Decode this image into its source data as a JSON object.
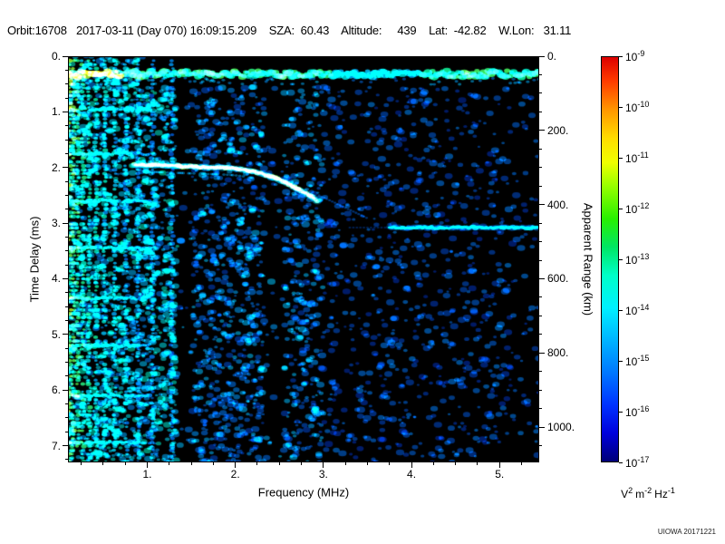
{
  "header": {
    "line": "Orbit:16708   2017-03-11 (Day 070) 16:09:15.209    SZA:  60.43    Altitude:     439    Lat:  -42.82    W.Lon:   31.11"
  },
  "watermark": "UIOWA 20171221",
  "chart_data": {
    "type": "heatmap",
    "title": "",
    "xlabel": "Frequency (MHz)",
    "ylabel": "Time Delay (ms)",
    "y2label": "Apparent Range (km)",
    "x_range": [
      0.1,
      5.45
    ],
    "y_range": [
      0,
      7.3
    ],
    "x_ticks": [
      1,
      2,
      3,
      4,
      5
    ],
    "x_tick_labels": [
      "1.",
      "2.",
      "3.",
      "4.",
      "5."
    ],
    "y_ticks": [
      0,
      1,
      2,
      3,
      4,
      5,
      6,
      7
    ],
    "y_tick_labels": [
      "0.",
      "1.",
      "2.",
      "3.",
      "4.",
      "5.",
      "6.",
      "7."
    ],
    "y2_ticks_km": [
      0,
      200,
      400,
      600,
      800,
      1000
    ],
    "y2_tick_labels": [
      "0.",
      "200.",
      "400.",
      "600.",
      "800.",
      "1000."
    ],
    "km_per_ms": 150,
    "grid": false,
    "seed": 42,
    "colorbar": {
      "tick_base": "10",
      "tick_exponents": [
        "-9",
        "-10",
        "-11",
        "-12",
        "-13",
        "-14",
        "-15",
        "-16",
        "-17"
      ],
      "unit_parts": [
        [
          "V",
          "2"
        ],
        [
          "m",
          "-2"
        ],
        [
          "Hz",
          "-1"
        ]
      ],
      "gradient": [
        [
          0,
          "#dc0000"
        ],
        [
          0.06,
          "#ff3c00"
        ],
        [
          0.13,
          "#ff9600"
        ],
        [
          0.2,
          "#ffdc00"
        ],
        [
          0.26,
          "#f0ff00"
        ],
        [
          0.32,
          "#96ff00"
        ],
        [
          0.4,
          "#28f000"
        ],
        [
          0.47,
          "#00e664"
        ],
        [
          0.54,
          "#00ffc8"
        ],
        [
          0.62,
          "#00f0ff"
        ],
        [
          0.7,
          "#00b4ff"
        ],
        [
          0.78,
          "#0078ff"
        ],
        [
          0.86,
          "#0032ff"
        ],
        [
          0.93,
          "#0000dc"
        ],
        [
          1,
          "#000078"
        ]
      ]
    },
    "features": {
      "background_color": "#000000",
      "ionosphere_band_ms": 0.32,
      "ionosphere_trace": {
        "start_mhz": 0.85,
        "cutoff_mhz": 2.95,
        "base_ms": 1.95,
        "end_ms": 2.5
      },
      "surface_echo": {
        "ms": 3.08,
        "from_mhz": 3.75,
        "to_mhz": 5.45
      },
      "plasma_lines_mhz": [
        0.12,
        0.16,
        0.21,
        0.27,
        0.34,
        0.42,
        0.52,
        0.63,
        0.76,
        0.9,
        1.06,
        1.28
      ],
      "cyclotron_lines_ms": [
        0.95,
        1.75,
        2.6,
        3.45,
        4.35,
        5.2,
        6.1,
        6.95
      ],
      "dark_bands_mhz": [
        [
          1.33,
          1.52
        ],
        [
          2.33,
          2.55
        ]
      ],
      "noise_boundary_mhz": 3.0
    }
  }
}
